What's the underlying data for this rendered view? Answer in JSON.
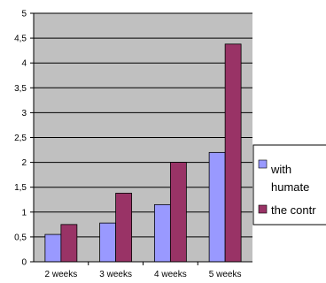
{
  "chart_data": {
    "type": "bar",
    "categories": [
      "2 weeks",
      "3 weeks",
      "4 weeks",
      "5 weeks"
    ],
    "series": [
      {
        "name": "with humate",
        "values": [
          0.55,
          0.78,
          1.15,
          2.2
        ],
        "color": "#9999ff"
      },
      {
        "name": "the contr",
        "values": [
          0.75,
          1.38,
          2.0,
          4.38
        ],
        "color": "#993366"
      }
    ],
    "y_ticks": [
      "0",
      "0,5",
      "1",
      "1,5",
      "2",
      "2,5",
      "3",
      "3,5",
      "4",
      "4,5",
      "5"
    ],
    "ylim": [
      0,
      5
    ],
    "grid": true,
    "plot_background": "#c0c0c0",
    "legend_position": "right"
  }
}
